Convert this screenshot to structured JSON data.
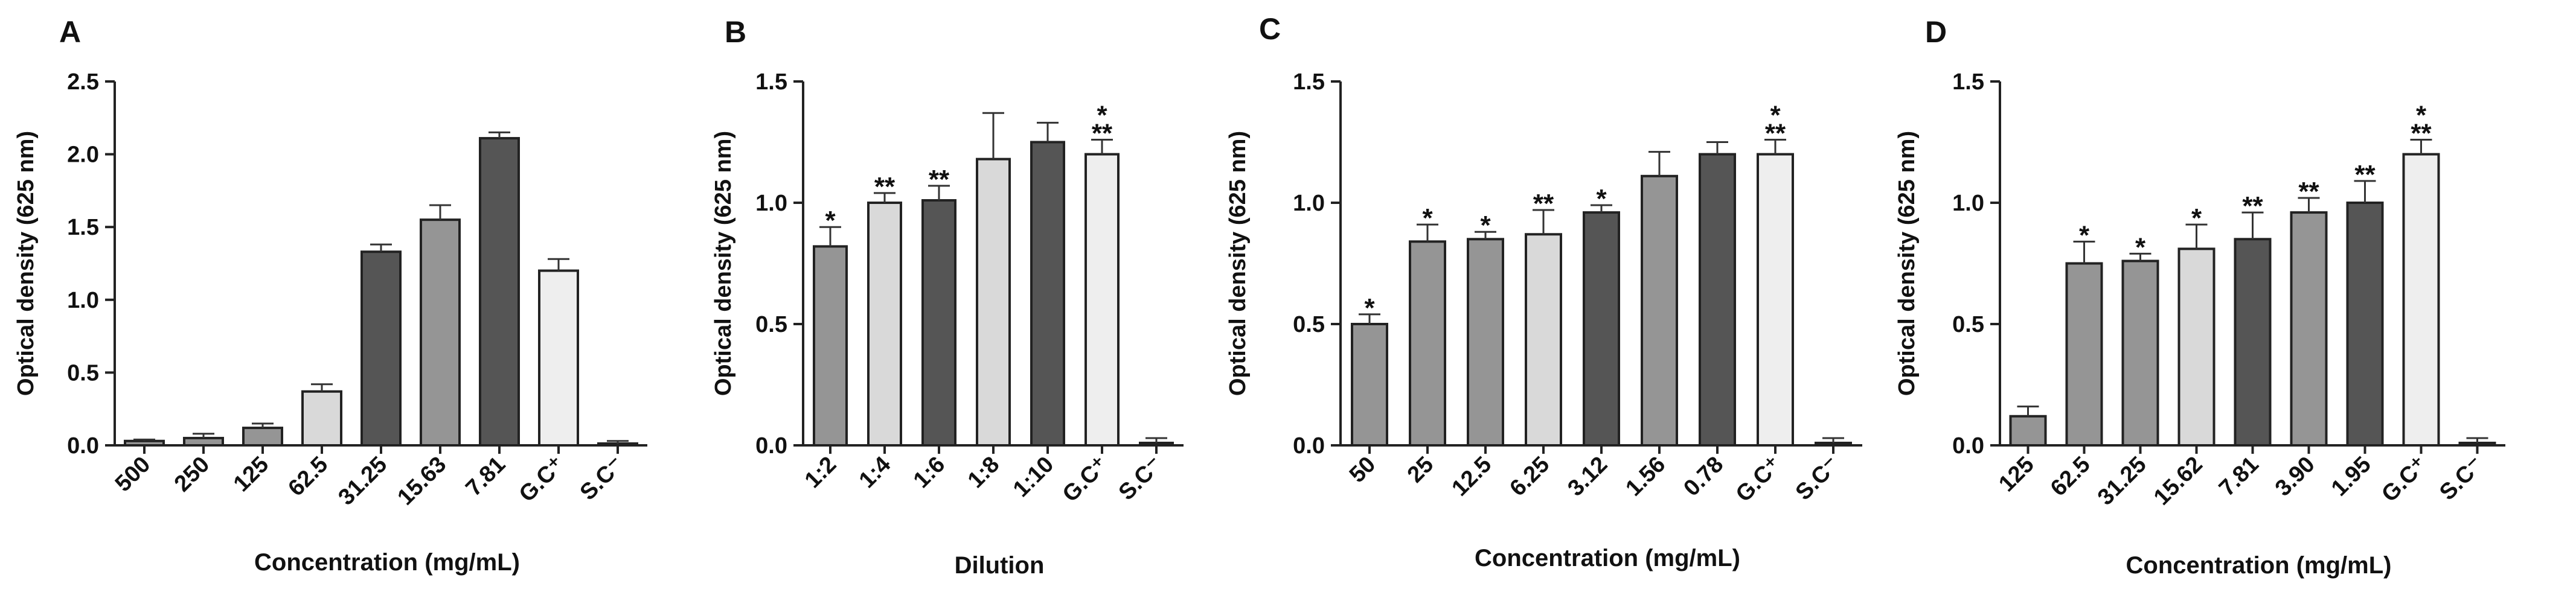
{
  "chart_data": [
    {
      "panel_label": "A",
      "type": "bar",
      "xlabel": "Concentration (mg/mL)",
      "ylabel": "Optical density (625 nm)",
      "ylim": [
        0,
        2.5
      ],
      "yticks": [
        "0.0",
        "0.5",
        "1.0",
        "1.5",
        "2.0",
        "2.5"
      ],
      "categories": [
        "500",
        "250",
        "125",
        "62.5",
        "31.25",
        "15.63",
        "7.81",
        "G.C⁺",
        "S.C⁻"
      ],
      "values": [
        0.03,
        0.05,
        0.12,
        0.37,
        1.33,
        1.55,
        2.11,
        1.2,
        0.01
      ],
      "errors": [
        0.01,
        0.03,
        0.03,
        0.05,
        0.05,
        0.1,
        0.04,
        0.08,
        0.02
      ],
      "fills": [
        "#959595",
        "#959595",
        "#959595",
        "#d9d9d9",
        "#555555",
        "#959595",
        "#555555",
        "#eeeeee",
        "#959595"
      ],
      "significance": [
        "",
        "",
        "",
        "",
        "",
        "",
        "",
        "",
        ""
      ]
    },
    {
      "panel_label": "B",
      "type": "bar",
      "xlabel": "Dilution",
      "ylabel": "Optical density (625 nm)",
      "ylim": [
        0,
        1.5
      ],
      "yticks": [
        "0.0",
        "0.5",
        "1.0",
        "1.5"
      ],
      "categories": [
        "1:2",
        "1:4",
        "1:6",
        "1:8",
        "1:10",
        "G.C⁺",
        "S.C⁻"
      ],
      "values": [
        0.82,
        1.0,
        1.01,
        1.18,
        1.25,
        1.2,
        0.01
      ],
      "errors": [
        0.08,
        0.04,
        0.06,
        0.19,
        0.08,
        0.06,
        0.02
      ],
      "fills": [
        "#959595",
        "#d9d9d9",
        "#555555",
        "#d9d9d9",
        "#555555",
        "#eeeeee",
        "#959595"
      ],
      "significance": [
        "*",
        "**",
        "**",
        "",
        "",
        "*\n**",
        ""
      ]
    },
    {
      "panel_label": "C",
      "type": "bar",
      "xlabel": "Concentration (mg/mL)",
      "ylabel": "Optical density (625 nm)",
      "ylim": [
        0,
        1.5
      ],
      "yticks": [
        "0.0",
        "0.5",
        "1.0",
        "1.5"
      ],
      "categories": [
        "50",
        "25",
        "12.5",
        "6.25",
        "3.12",
        "1.56",
        "0.78",
        "G.C⁺",
        "S.C⁻"
      ],
      "values": [
        0.5,
        0.84,
        0.85,
        0.87,
        0.96,
        1.11,
        1.2,
        1.2,
        0.01
      ],
      "errors": [
        0.04,
        0.07,
        0.03,
        0.1,
        0.03,
        0.1,
        0.05,
        0.06,
        0.02
      ],
      "fills": [
        "#959595",
        "#959595",
        "#959595",
        "#d9d9d9",
        "#555555",
        "#959595",
        "#555555",
        "#eeeeee",
        "#959595"
      ],
      "significance": [
        "*",
        "*",
        "*",
        "**",
        "*",
        "",
        "",
        "*\n**",
        ""
      ]
    },
    {
      "panel_label": "D",
      "type": "bar",
      "xlabel": "Concentration (mg/mL)",
      "ylabel": "Optical density (625 nm)",
      "ylim": [
        0,
        1.5
      ],
      "yticks": [
        "0.0",
        "0.5",
        "1.0",
        "1.5"
      ],
      "categories": [
        "125",
        "62.5",
        "31.25",
        "15.62",
        "7.81",
        "3.90",
        "1.95",
        "G.C⁺",
        "S.C⁻"
      ],
      "values": [
        0.12,
        0.75,
        0.76,
        0.81,
        0.85,
        0.96,
        1.0,
        1.2,
        0.01
      ],
      "errors": [
        0.04,
        0.09,
        0.03,
        0.1,
        0.11,
        0.06,
        0.09,
        0.06,
        0.02
      ],
      "fills": [
        "#959595",
        "#959595",
        "#959595",
        "#d9d9d9",
        "#555555",
        "#959595",
        "#555555",
        "#eeeeee",
        "#959595"
      ],
      "significance": [
        "",
        "*",
        "*",
        "*",
        "**",
        "**",
        "**",
        "*\n**",
        ""
      ]
    }
  ]
}
